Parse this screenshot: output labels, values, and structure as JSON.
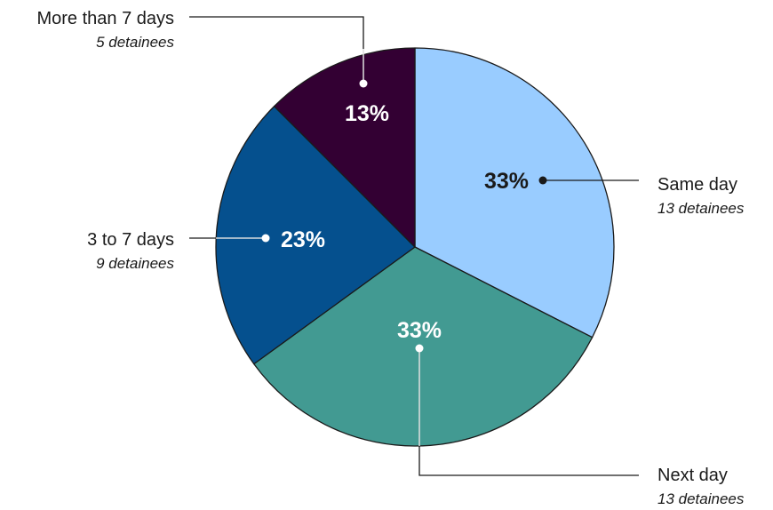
{
  "chart_data": {
    "type": "pie",
    "start_angle_deg": 0,
    "direction": "clockwise",
    "slices": [
      {
        "label": "Same day",
        "percent_label": "33%",
        "value": 13,
        "sublabel": "13 detainees",
        "color": "#99ccff",
        "pct_text_color": "#1a1a1a"
      },
      {
        "label": "Next day",
        "percent_label": "33%",
        "value": 13,
        "sublabel": "13 detainees",
        "color": "#429a92",
        "pct_text_color": "#ffffff"
      },
      {
        "label": "3 to 7 days",
        "percent_label": "23%",
        "value": 9,
        "sublabel": "9 detainees",
        "color": "#05508e",
        "pct_text_color": "#ffffff"
      },
      {
        "label": "More than 7 days",
        "percent_label": "13%",
        "value": 5,
        "sublabel": "5 detainees",
        "color": "#330033",
        "pct_text_color": "#ffffff"
      }
    ]
  }
}
